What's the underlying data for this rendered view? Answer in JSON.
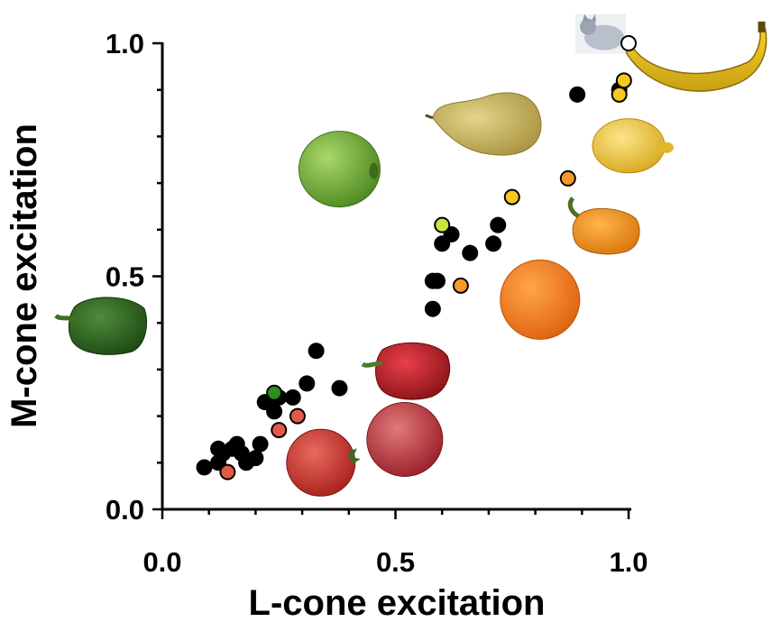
{
  "chart_data": {
    "type": "scatter",
    "xlabel": "L-cone excitation",
    "ylabel": "M-cone excitation",
    "xlim": [
      0.0,
      1.0
    ],
    "ylim": [
      0.0,
      1.0
    ],
    "xticks": [
      "0.0",
      "0.5",
      "1.0"
    ],
    "yticks": [
      "0.0",
      "0.5",
      "1.0"
    ],
    "grid": false,
    "legend": "none",
    "series": [
      {
        "color": "#000000",
        "points": [
          {
            "x": 0.09,
            "y": 0.09
          },
          {
            "x": 0.12,
            "y": 0.1
          },
          {
            "x": 0.12,
            "y": 0.13
          },
          {
            "x": 0.13,
            "y": 0.12
          },
          {
            "x": 0.15,
            "y": 0.13
          },
          {
            "x": 0.16,
            "y": 0.14
          },
          {
            "x": 0.17,
            "y": 0.12
          },
          {
            "x": 0.18,
            "y": 0.1
          },
          {
            "x": 0.2,
            "y": 0.11
          },
          {
            "x": 0.21,
            "y": 0.14
          },
          {
            "x": 0.22,
            "y": 0.23
          },
          {
            "x": 0.24,
            "y": 0.21
          },
          {
            "x": 0.25,
            "y": 0.24
          },
          {
            "x": 0.28,
            "y": 0.24
          },
          {
            "x": 0.31,
            "y": 0.27
          },
          {
            "x": 0.33,
            "y": 0.34
          },
          {
            "x": 0.38,
            "y": 0.26
          },
          {
            "x": 0.58,
            "y": 0.43
          },
          {
            "x": 0.58,
            "y": 0.49
          },
          {
            "x": 0.59,
            "y": 0.49
          },
          {
            "x": 0.6,
            "y": 0.57
          },
          {
            "x": 0.62,
            "y": 0.59
          },
          {
            "x": 0.66,
            "y": 0.55
          },
          {
            "x": 0.71,
            "y": 0.57
          },
          {
            "x": 0.72,
            "y": 0.61
          },
          {
            "x": 0.89,
            "y": 0.89
          },
          {
            "x": 0.98,
            "y": 0.9
          }
        ]
      },
      {
        "color": "#2e8b1e",
        "points": [
          {
            "x": 0.24,
            "y": 0.25
          }
        ]
      },
      {
        "color": "#e05a48",
        "points": [
          {
            "x": 0.14,
            "y": 0.08
          },
          {
            "x": 0.25,
            "y": 0.17
          },
          {
            "x": 0.29,
            "y": 0.2
          }
        ]
      },
      {
        "color": "#c8e63c",
        "points": [
          {
            "x": 0.6,
            "y": 0.61
          }
        ]
      },
      {
        "color": "#f59a2a",
        "points": [
          {
            "x": 0.64,
            "y": 0.48
          },
          {
            "x": 0.87,
            "y": 0.71
          }
        ]
      },
      {
        "color": "#f5c81e",
        "points": [
          {
            "x": 0.75,
            "y": 0.67
          },
          {
            "x": 0.98,
            "y": 0.89
          },
          {
            "x": 0.99,
            "y": 0.92
          }
        ]
      },
      {
        "color": "#ffffff",
        "points": [
          {
            "x": 1.0,
            "y": 1.0
          }
        ]
      }
    ],
    "images": [
      {
        "icon": "cat-icon",
        "x": 0.94,
        "y": 1.02
      },
      {
        "icon": "banana-icon",
        "x": 1.15,
        "y": 0.95
      },
      {
        "icon": "pear-icon",
        "x": 0.7,
        "y": 0.83
      },
      {
        "icon": "lemon-icon",
        "x": 1.0,
        "y": 0.78
      },
      {
        "icon": "green-apple-icon",
        "x": 0.38,
        "y": 0.73
      },
      {
        "icon": "orange-pepper-icon",
        "x": 0.95,
        "y": 0.6
      },
      {
        "icon": "orange-icon",
        "x": 0.81,
        "y": 0.45
      },
      {
        "icon": "green-pepper-icon",
        "x": -0.12,
        "y": 0.4
      },
      {
        "icon": "red-pepper-icon",
        "x": 0.53,
        "y": 0.3
      },
      {
        "icon": "red-apple-icon",
        "x": 0.52,
        "y": 0.15
      },
      {
        "icon": "tomato-icon",
        "x": 0.34,
        "y": 0.1
      }
    ]
  }
}
